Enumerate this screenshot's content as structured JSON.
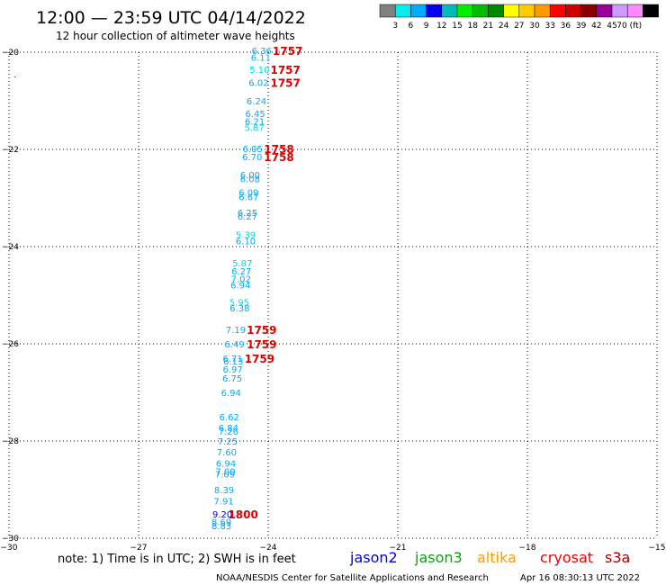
{
  "header": {
    "title": "12:00 — 23:59 UTC 04/14/2022",
    "subtitle": "12 hour collection of altimeter wave heights"
  },
  "color_scale": {
    "colors": [
      "#808080",
      "#00eeee",
      "#00aaff",
      "#0000ee",
      "#00bbbb",
      "#00ee00",
      "#00bb00",
      "#008800",
      "#ffff00",
      "#ffcc00",
      "#ff9900",
      "#ff0000",
      "#cc0000",
      "#880000",
      "#990099",
      "#cc99ff",
      "#ff88ff",
      "#000000"
    ],
    "labels": [
      "3",
      "6",
      "9",
      "12",
      "15",
      "18",
      "21",
      "24",
      "27",
      "30",
      "33",
      "36",
      "39",
      "42",
      "45",
      "70 (ft)"
    ]
  },
  "footer": {
    "note": "note:  1) Time is in UTC;  2) SWH is in feet",
    "satellites": [
      {
        "name": "jason2",
        "color": "#0000ee"
      },
      {
        "name": "jason3",
        "color": "#00aa00"
      },
      {
        "name": "altika",
        "color": "#ff9900"
      },
      {
        "name": "cryosat",
        "color": "#ee0000"
      },
      {
        "name": "s3a",
        "color": "#aa0000"
      }
    ],
    "credit": "NOAA/NESDIS Center for Satellite Applications and Research",
    "timestamp": "Apr 16 08:30:13 UTC 2022"
  },
  "chart_data": {
    "type": "scatter",
    "xlim": [
      -30,
      -15
    ],
    "ylim": [
      -30,
      -20
    ],
    "x_ticks": [
      -30,
      -27,
      -24,
      -21,
      -18,
      -15
    ],
    "x_tick_labels": [
      "−30",
      "−27",
      "−24",
      "−21",
      "−18",
      "−15"
    ],
    "y_ticks": [
      -20,
      -22,
      -24,
      -26,
      -28,
      -30
    ],
    "y_tick_labels": [
      "−20",
      "−22",
      "−24",
      "−26",
      "−28",
      "−30"
    ],
    "grid": true,
    "wave_heights": [
      {
        "lon": -24.15,
        "lat": -19.96,
        "value": "6.36"
      },
      {
        "lon": -24.17,
        "lat": -20.1,
        "value": "6.11"
      },
      {
        "lon": -24.2,
        "lat": -20.35,
        "value": "5.10"
      },
      {
        "lon": -24.22,
        "lat": -20.62,
        "value": "6.02"
      },
      {
        "lon": -24.27,
        "lat": -21.0,
        "value": "6.24"
      },
      {
        "lon": -24.3,
        "lat": -21.26,
        "value": "6.45"
      },
      {
        "lon": -24.31,
        "lat": -21.42,
        "value": "6.21"
      },
      {
        "lon": -24.32,
        "lat": -21.55,
        "value": "5.87"
      },
      {
        "lon": -24.36,
        "lat": -21.98,
        "value": "6.05"
      },
      {
        "lon": -24.37,
        "lat": -22.15,
        "value": "6.70"
      },
      {
        "lon": -24.42,
        "lat": -22.52,
        "value": "6.00"
      },
      {
        "lon": -24.42,
        "lat": -22.6,
        "value": "6.08"
      },
      {
        "lon": -24.45,
        "lat": -22.88,
        "value": "6.09"
      },
      {
        "lon": -24.45,
        "lat": -22.97,
        "value": "6.67"
      },
      {
        "lon": -24.48,
        "lat": -23.3,
        "value": "6.25"
      },
      {
        "lon": -24.48,
        "lat": -23.37,
        "value": "6.27"
      },
      {
        "lon": -24.52,
        "lat": -23.75,
        "value": "5.39"
      },
      {
        "lon": -24.52,
        "lat": -23.88,
        "value": "6.10"
      },
      {
        "lon": -24.6,
        "lat": -24.33,
        "value": "5.87"
      },
      {
        "lon": -24.62,
        "lat": -24.5,
        "value": "6.27"
      },
      {
        "lon": -24.63,
        "lat": -24.66,
        "value": "7.02"
      },
      {
        "lon": -24.64,
        "lat": -24.79,
        "value": "6.94"
      },
      {
        "lon": -24.67,
        "lat": -25.14,
        "value": "5.95"
      },
      {
        "lon": -24.66,
        "lat": -25.26,
        "value": "6.38"
      },
      {
        "lon": -24.75,
        "lat": -25.7,
        "value": "7.19"
      },
      {
        "lon": -24.78,
        "lat": -26.0,
        "value": "6.49"
      },
      {
        "lon": -24.82,
        "lat": -26.3,
        "value": "6.71"
      },
      {
        "lon": -24.81,
        "lat": -26.35,
        "value": "6.13"
      },
      {
        "lon": -24.82,
        "lat": -26.52,
        "value": "6.97"
      },
      {
        "lon": -24.83,
        "lat": -26.7,
        "value": "6.75"
      },
      {
        "lon": -24.86,
        "lat": -27.0,
        "value": "6.94"
      },
      {
        "lon": -24.9,
        "lat": -27.5,
        "value": "6.62"
      },
      {
        "lon": -24.92,
        "lat": -27.72,
        "value": "6.84"
      },
      {
        "lon": -24.92,
        "lat": -27.8,
        "value": "7.26"
      },
      {
        "lon": -24.94,
        "lat": -28.0,
        "value": "7.25"
      },
      {
        "lon": -24.96,
        "lat": -28.22,
        "value": "7.60"
      },
      {
        "lon": -24.98,
        "lat": -28.45,
        "value": "6.94"
      },
      {
        "lon": -24.99,
        "lat": -28.62,
        "value": "7.00"
      },
      {
        "lon": -25.0,
        "lat": -28.68,
        "value": "7.09"
      },
      {
        "lon": -25.02,
        "lat": -29.0,
        "value": "8.39"
      },
      {
        "lon": -25.03,
        "lat": -29.23,
        "value": "7.91"
      },
      {
        "lon": -25.06,
        "lat": -29.5,
        "value": "9.20"
      },
      {
        "lon": -25.08,
        "lat": -29.66,
        "value": "8.69"
      },
      {
        "lon": -25.08,
        "lat": -29.74,
        "value": "8.83"
      }
    ],
    "time_labels": [
      {
        "lon": -23.55,
        "lat": -19.96,
        "value": "1757"
      },
      {
        "lon": -23.6,
        "lat": -20.35,
        "value": "1757"
      },
      {
        "lon": -23.6,
        "lat": -20.62,
        "value": "1757"
      },
      {
        "lon": -23.75,
        "lat": -21.98,
        "value": "1758"
      },
      {
        "lon": -23.75,
        "lat": -22.15,
        "value": "1758"
      },
      {
        "lon": -24.15,
        "lat": -25.7,
        "value": "1759"
      },
      {
        "lon": -24.15,
        "lat": -26.0,
        "value": "1759"
      },
      {
        "lon": -24.2,
        "lat": -26.3,
        "value": "1759"
      },
      {
        "lon": -24.58,
        "lat": -29.5,
        "value": "1800"
      }
    ]
  }
}
